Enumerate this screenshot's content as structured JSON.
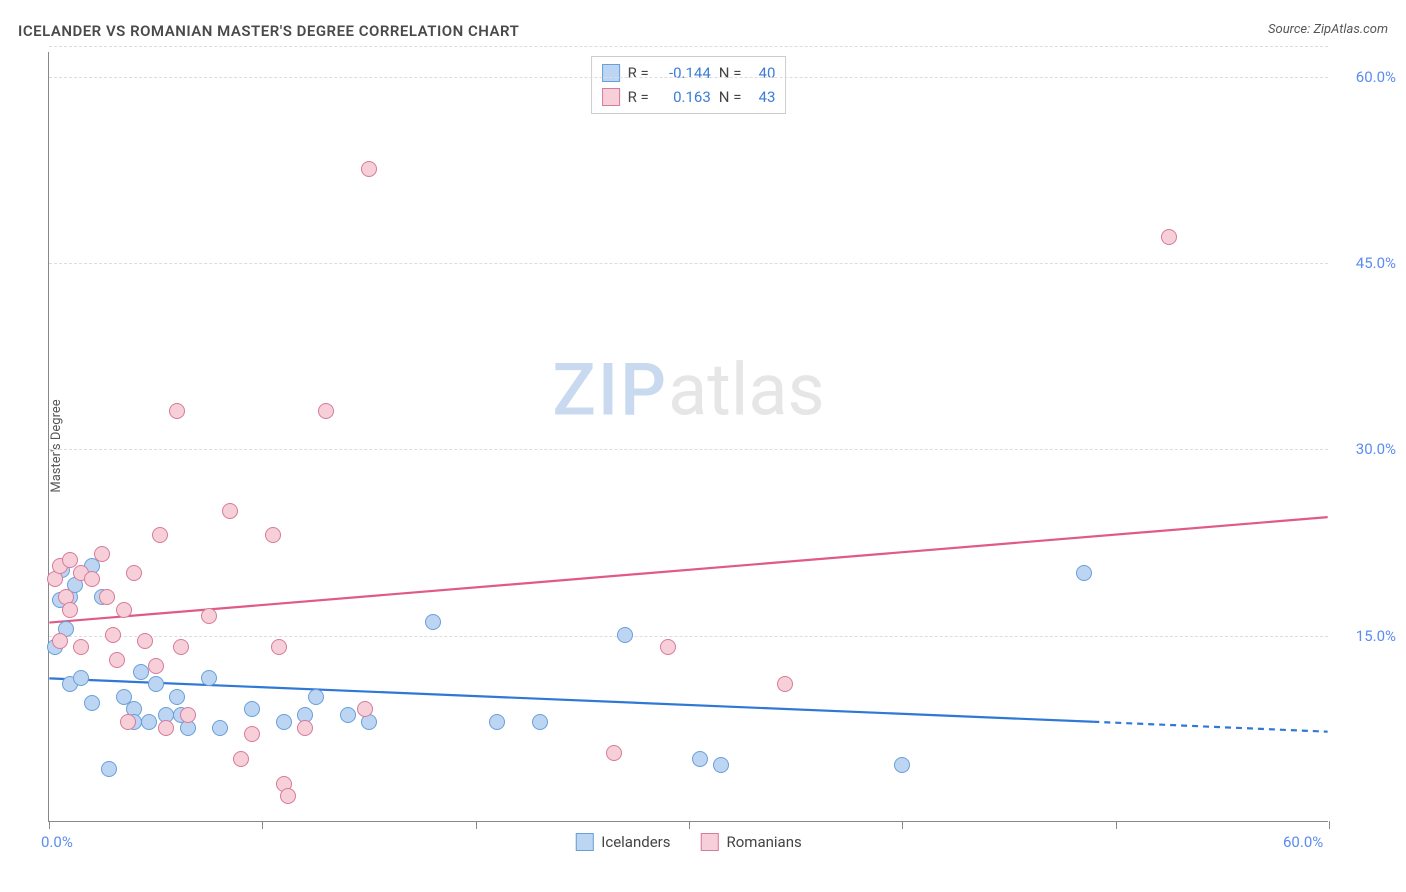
{
  "title": "ICELANDER VS ROMANIAN MASTER'S DEGREE CORRELATION CHART",
  "source_label": "Source: ",
  "source_name": "ZipAtlas.com",
  "y_axis_label": "Master's Degree",
  "watermark": {
    "part1": "ZIP",
    "part2": "atlas"
  },
  "chart": {
    "type": "scatter",
    "plot_bg": "#ffffff",
    "grid_color": "#dddddd",
    "axis_color": "#888888",
    "xlim": [
      0,
      60
    ],
    "ylim": [
      0,
      62
    ],
    "x_ticks": [
      0,
      10,
      20,
      30,
      40,
      50,
      60
    ],
    "x_tick_labels": {
      "0": "0.0%",
      "60": "60.0%"
    },
    "y_gridlines": [
      15,
      30,
      45,
      60,
      62.5
    ],
    "y_tick_labels": {
      "15": "15.0%",
      "30": "30.0%",
      "45": "45.0%",
      "60": "60.0%"
    },
    "marker_radius": 8,
    "marker_stroke_width": 1.3,
    "trend_line_width": 2.2,
    "series": [
      {
        "name": "Icelanders",
        "fill": "#bcd5f2",
        "stroke": "#6a9fd8",
        "trend_color": "#2f78d6",
        "trend": {
          "x1": 0,
          "y1": 11.5,
          "x2": 49,
          "y2": 8.0,
          "x2_dash": 60,
          "y2_dash": 7.2
        },
        "R": "-0.144",
        "N": "40",
        "points": [
          [
            0.3,
            14.0
          ],
          [
            0.5,
            17.8
          ],
          [
            0.6,
            20.2
          ],
          [
            0.8,
            15.5
          ],
          [
            1.0,
            18.0
          ],
          [
            1.0,
            11.0
          ],
          [
            1.2,
            19.0
          ],
          [
            1.5,
            11.5
          ],
          [
            2.0,
            20.5
          ],
          [
            2.0,
            9.5
          ],
          [
            2.5,
            18.0
          ],
          [
            2.8,
            4.2
          ],
          [
            3.5,
            10.0
          ],
          [
            4.0,
            9.0
          ],
          [
            4.0,
            8.0
          ],
          [
            4.3,
            12.0
          ],
          [
            4.7,
            8.0
          ],
          [
            5.0,
            11.0
          ],
          [
            5.5,
            8.5
          ],
          [
            6.0,
            10.0
          ],
          [
            6.2,
            8.5
          ],
          [
            6.5,
            7.5
          ],
          [
            7.5,
            11.5
          ],
          [
            8.0,
            7.5
          ],
          [
            9.5,
            9.0
          ],
          [
            11.0,
            8.0
          ],
          [
            12.0,
            8.5
          ],
          [
            12.5,
            10.0
          ],
          [
            14.0,
            8.5
          ],
          [
            15.0,
            8.0
          ],
          [
            18.0,
            16.0
          ],
          [
            21.0,
            8.0
          ],
          [
            23.0,
            8.0
          ],
          [
            27.0,
            15.0
          ],
          [
            30.5,
            5.0
          ],
          [
            31.5,
            4.5
          ],
          [
            40.0,
            4.5
          ],
          [
            48.5,
            20.0
          ]
        ]
      },
      {
        "name": "Romanians",
        "fill": "#f6cfd9",
        "stroke": "#d87a9a",
        "trend_color": "#e05a87",
        "trend": {
          "x1": 0,
          "y1": 16.0,
          "x2": 60,
          "y2": 24.5
        },
        "R": "0.163",
        "N": "43",
        "points": [
          [
            0.3,
            19.5
          ],
          [
            0.5,
            20.5
          ],
          [
            0.5,
            14.5
          ],
          [
            0.8,
            18.0
          ],
          [
            1.0,
            21.0
          ],
          [
            1.0,
            17.0
          ],
          [
            1.5,
            20.0
          ],
          [
            1.5,
            14.0
          ],
          [
            2.0,
            19.5
          ],
          [
            2.5,
            21.5
          ],
          [
            2.7,
            18.0
          ],
          [
            3.0,
            15.0
          ],
          [
            3.2,
            13.0
          ],
          [
            3.5,
            17.0
          ],
          [
            3.7,
            8.0
          ],
          [
            4.0,
            20.0
          ],
          [
            4.5,
            14.5
          ],
          [
            5.0,
            12.5
          ],
          [
            5.2,
            23.0
          ],
          [
            5.5,
            7.5
          ],
          [
            6.0,
            33.0
          ],
          [
            6.2,
            14.0
          ],
          [
            6.5,
            8.5
          ],
          [
            7.5,
            16.5
          ],
          [
            8.5,
            25.0
          ],
          [
            9.0,
            5.0
          ],
          [
            9.5,
            7.0
          ],
          [
            10.5,
            23.0
          ],
          [
            10.8,
            14.0
          ],
          [
            11.0,
            3.0
          ],
          [
            11.2,
            2.0
          ],
          [
            12.0,
            7.5
          ],
          [
            13.0,
            33.0
          ],
          [
            14.8,
            9.0
          ],
          [
            15.0,
            52.5
          ],
          [
            26.5,
            5.5
          ],
          [
            29.0,
            14.0
          ],
          [
            34.5,
            11.0
          ],
          [
            52.5,
            47.0
          ]
        ]
      }
    ],
    "legend_bottom": [
      {
        "label": "Icelanders",
        "fill": "#bcd5f2",
        "stroke": "#6a9fd8"
      },
      {
        "label": "Romanians",
        "fill": "#f6cfd9",
        "stroke": "#d87a9a"
      }
    ],
    "legend_top_labels": {
      "R": "R =",
      "N": "N ="
    }
  }
}
